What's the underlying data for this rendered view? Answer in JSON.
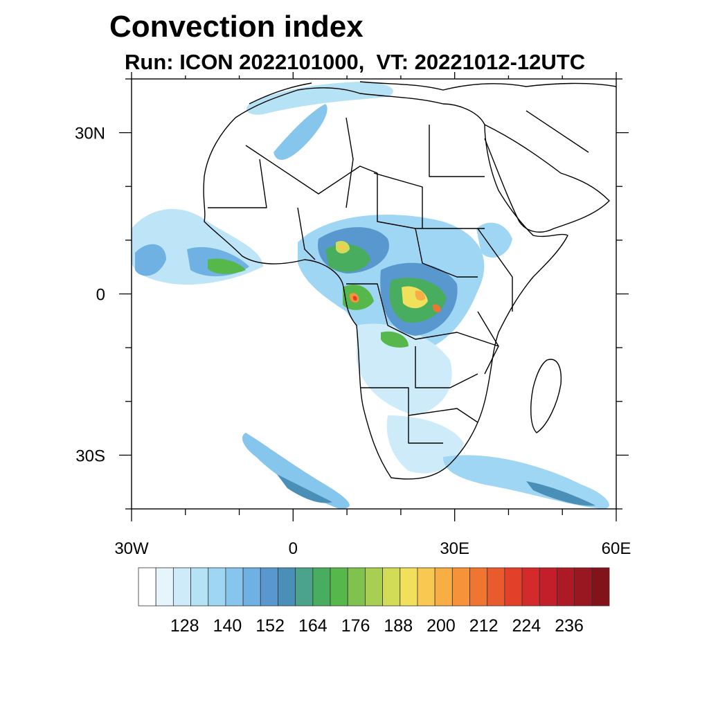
{
  "title": "Convection index",
  "subtitle": "Run: ICON 2022101000,  VT: 20221012-12UTC",
  "map": {
    "lon_range": [
      -30,
      60
    ],
    "lat_range": [
      -40,
      40
    ],
    "lon_ticks": [
      {
        "lon": -30,
        "label": "30W"
      },
      {
        "lon": 0,
        "label": "0"
      },
      {
        "lon": 30,
        "label": "30E"
      },
      {
        "lon": 60,
        "label": "60E"
      }
    ],
    "lat_ticks": [
      {
        "lat": 30,
        "label": "30N"
      },
      {
        "lat": 0,
        "label": "0"
      },
      {
        "lat": -30,
        "label": "30S"
      }
    ]
  },
  "colorbar": {
    "colors": [
      "#ffffff",
      "#e6f4fb",
      "#cdebf8",
      "#b6e2f6",
      "#9ed6f3",
      "#86c6ec",
      "#6eb1e2",
      "#5998cf",
      "#4a8fb8",
      "#4aa38a",
      "#48ad5e",
      "#56b84b",
      "#7fc24d",
      "#a8ce52",
      "#d3dc57",
      "#f0e05c",
      "#f9c850",
      "#f8ad45",
      "#f5923a",
      "#f07530",
      "#e95a2c",
      "#e24028",
      "#d42a2a",
      "#c21f2a",
      "#ad1a25",
      "#981720",
      "#82131b"
    ],
    "labels": [
      "128",
      "140",
      "152",
      "164",
      "176",
      "188",
      "200",
      "212",
      "224",
      "236"
    ]
  }
}
